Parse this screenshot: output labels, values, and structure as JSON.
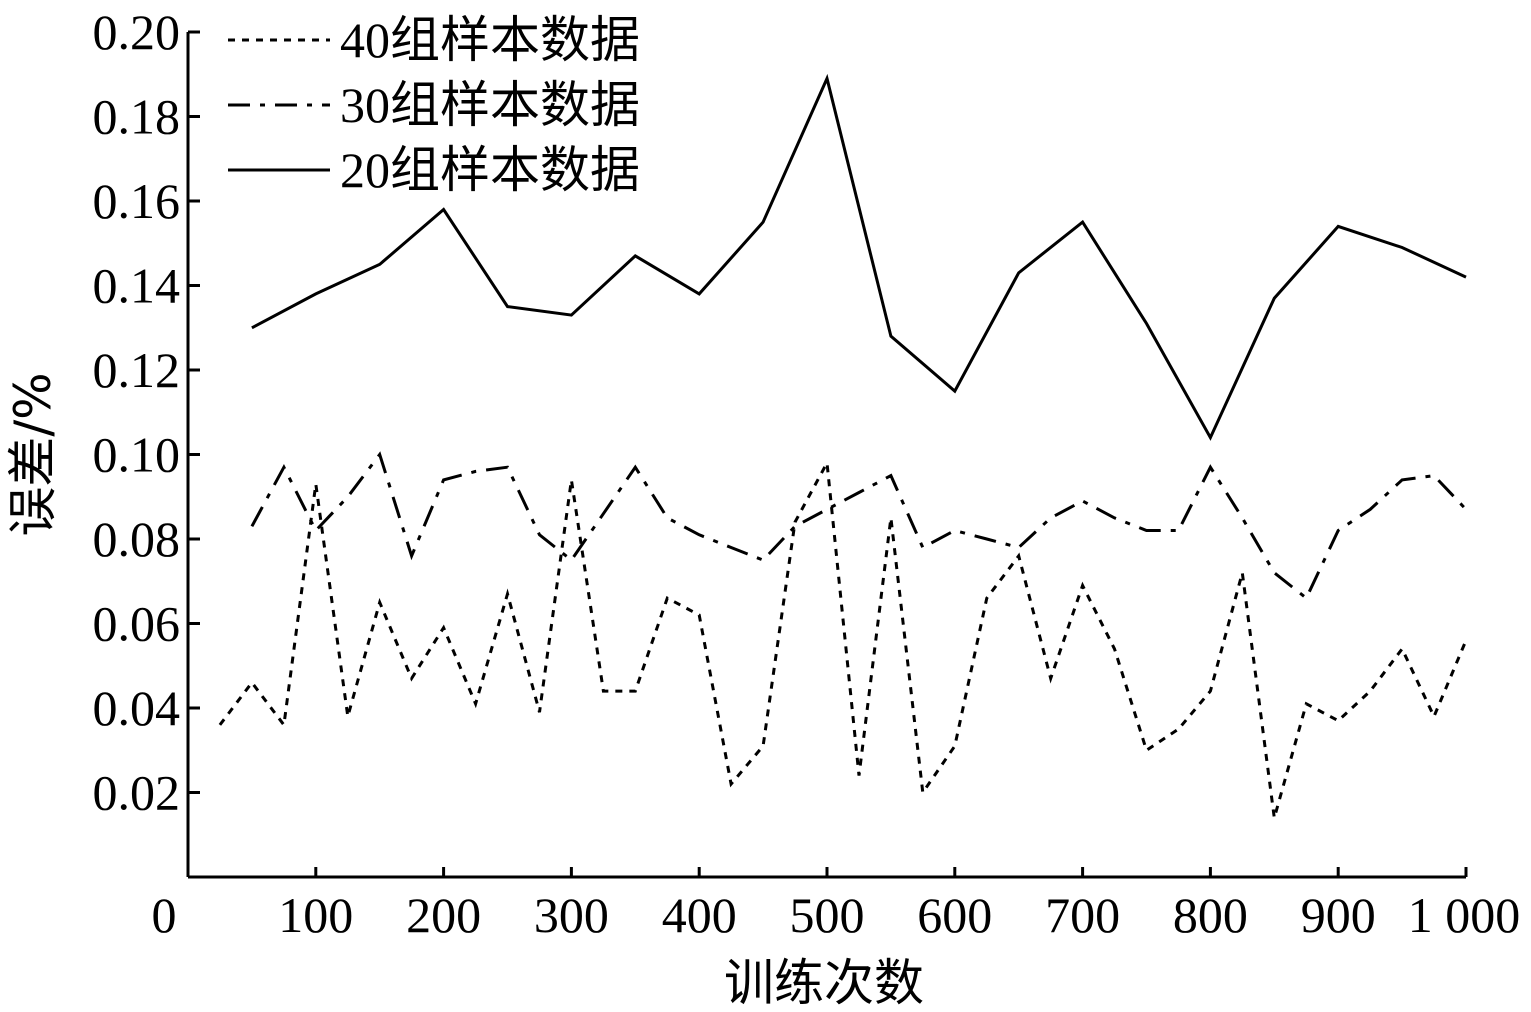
{
  "chart_data": {
    "type": "line",
    "xlabel": "训练次数",
    "ylabel": "误差/%",
    "xlim": [
      0,
      1000
    ],
    "ylim": [
      0,
      0.2
    ],
    "x_ticks": [
      0,
      100,
      200,
      300,
      400,
      500,
      600,
      700,
      800,
      900,
      1000
    ],
    "x_tick_labels": [
      "0",
      "100",
      "200",
      "300",
      "400",
      "500",
      "600",
      "700",
      "800",
      "900",
      "1 000"
    ],
    "y_ticks": [
      0.02,
      0.04,
      0.06,
      0.08,
      0.1,
      0.12,
      0.14,
      0.16,
      0.18,
      0.2
    ],
    "y_tick_labels": [
      "0.02",
      "0.04",
      "0.06",
      "0.08",
      "0.10",
      "0.12",
      "0.14",
      "0.16",
      "0.18",
      "0.20"
    ],
    "grid": false,
    "legend_position": "top-left",
    "series": [
      {
        "name": "40组样本数据",
        "line_style": "dotted",
        "color": "#000000",
        "x": [
          25,
          50,
          75,
          100,
          125,
          150,
          175,
          200,
          225,
          250,
          275,
          300,
          325,
          350,
          375,
          400,
          425,
          450,
          475,
          500,
          525,
          550,
          575,
          600,
          625,
          650,
          675,
          700,
          725,
          750,
          775,
          800,
          825,
          850,
          875,
          900,
          925,
          950,
          975,
          1000
        ],
        "y": [
          0.036,
          0.046,
          0.036,
          0.093,
          0.038,
          0.065,
          0.047,
          0.059,
          0.041,
          0.067,
          0.039,
          0.094,
          0.044,
          0.044,
          0.066,
          0.062,
          0.022,
          0.031,
          0.084,
          0.098,
          0.024,
          0.085,
          0.02,
          0.031,
          0.066,
          0.076,
          0.047,
          0.069,
          0.054,
          0.03,
          0.035,
          0.044,
          0.072,
          0.014,
          0.041,
          0.037,
          0.044,
          0.054,
          0.038,
          0.056
        ]
      },
      {
        "name": "30组样本数据",
        "line_style": "dash-dot",
        "color": "#000000",
        "x": [
          50,
          75,
          100,
          125,
          150,
          175,
          200,
          225,
          250,
          275,
          300,
          325,
          350,
          375,
          400,
          425,
          450,
          475,
          500,
          525,
          550,
          575,
          600,
          625,
          650,
          675,
          700,
          725,
          750,
          775,
          800,
          825,
          850,
          875,
          900,
          925,
          950,
          975,
          1000
        ],
        "y": [
          0.083,
          0.097,
          0.082,
          0.09,
          0.1,
          0.076,
          0.094,
          0.096,
          0.097,
          0.081,
          0.075,
          0.086,
          0.097,
          0.085,
          0.081,
          0.078,
          0.075,
          0.083,
          0.087,
          0.091,
          0.095,
          0.078,
          0.082,
          0.08,
          0.078,
          0.085,
          0.089,
          0.085,
          0.082,
          0.082,
          0.097,
          0.085,
          0.072,
          0.066,
          0.082,
          0.087,
          0.094,
          0.095,
          0.087
        ]
      },
      {
        "name": "20组样本数据",
        "line_style": "solid",
        "color": "#000000",
        "x": [
          50,
          100,
          150,
          200,
          250,
          300,
          350,
          400,
          450,
          500,
          550,
          600,
          650,
          700,
          750,
          800,
          850,
          900,
          950,
          1000
        ],
        "y": [
          0.13,
          0.138,
          0.145,
          0.158,
          0.135,
          0.133,
          0.147,
          0.138,
          0.155,
          0.189,
          0.128,
          0.115,
          0.143,
          0.155,
          0.131,
          0.104,
          0.137,
          0.154,
          0.149,
          0.142
        ]
      }
    ]
  }
}
